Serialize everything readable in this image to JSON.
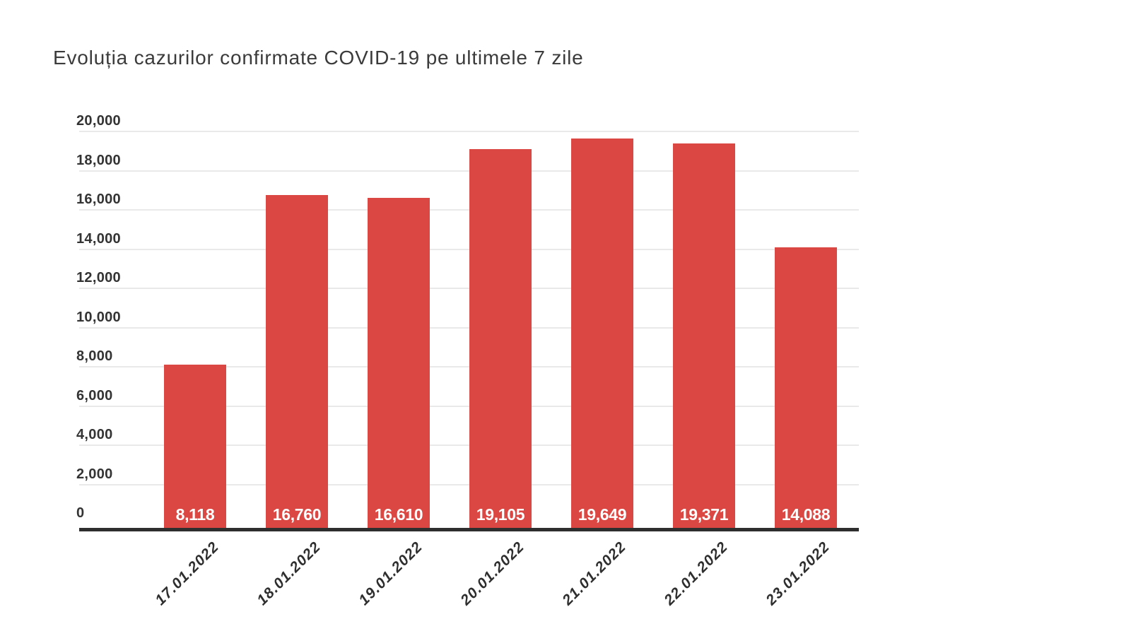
{
  "chart_data": {
    "type": "bar",
    "title": "Evoluția cazurilor confirmate COVID-19 pe ultimele 7 zile",
    "categories": [
      "17.01.2022",
      "18.01.2022",
      "19.01.2022",
      "20.01.2022",
      "21.01.2022",
      "22.01.2022",
      "23.01.2022"
    ],
    "values": [
      8118,
      16760,
      16610,
      19105,
      19649,
      19371,
      14088
    ],
    "value_labels": [
      "8,118",
      "16,760",
      "16,610",
      "19,105",
      "19,649",
      "19,371",
      "14,088"
    ],
    "y_ticks": [
      {
        "value": 0,
        "label": "0"
      },
      {
        "value": 2000,
        "label": "2,000"
      },
      {
        "value": 4000,
        "label": "4,000"
      },
      {
        "value": 6000,
        "label": "6,000"
      },
      {
        "value": 8000,
        "label": "8,000"
      },
      {
        "value": 10000,
        "label": "10,000"
      },
      {
        "value": 12000,
        "label": "12,000"
      },
      {
        "value": 14000,
        "label": "14,000"
      },
      {
        "value": 16000,
        "label": "16,000"
      },
      {
        "value": 18000,
        "label": "18,000"
      },
      {
        "value": 20000,
        "label": "20,000"
      }
    ],
    "ylim": [
      0,
      20000
    ],
    "xlabel": "",
    "ylabel": "",
    "grid": true,
    "legend_position": "none",
    "colors": {
      "bar": "#DB4743",
      "grid": "#E9E9E9",
      "axis": "#2E2E2E",
      "tick_text": "#333333",
      "title_text": "#3B3B3B",
      "x_label_text": "#2E2E2E",
      "value_label_text": "#FFFFFF",
      "background": "#FFFFFF"
    }
  }
}
